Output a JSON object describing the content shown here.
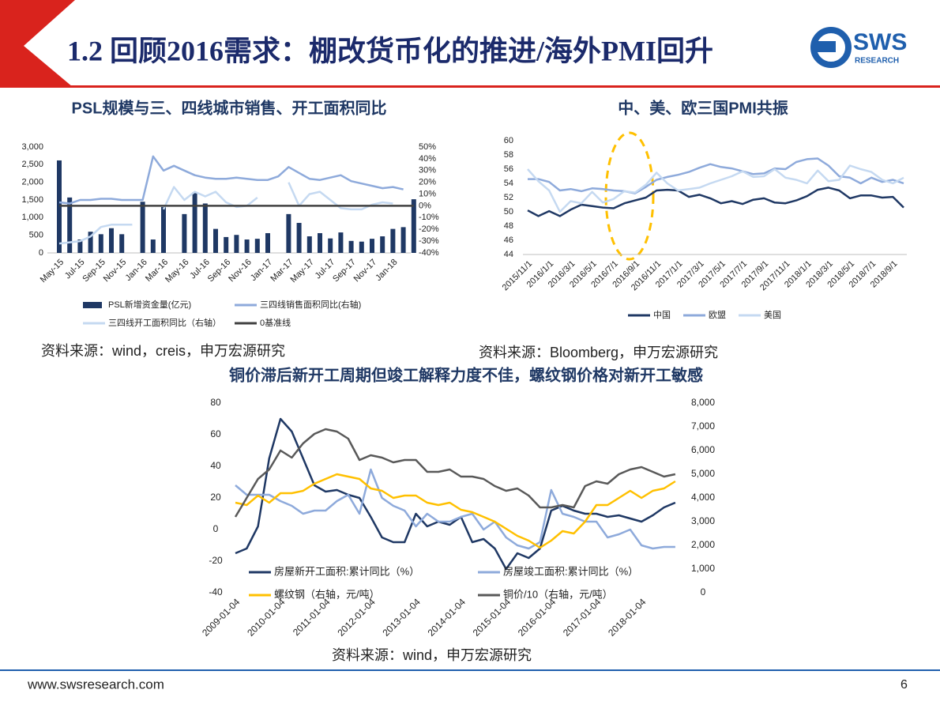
{
  "header": {
    "title": "1.2 回顾2016需求：棚改货币化的推进/海外PMI回升",
    "logo_main": "SWS",
    "logo_sub": "RESEARCH"
  },
  "footer": {
    "url": "www.swsresearch.com",
    "page": 6
  },
  "chart_data": [
    {
      "type": "bar",
      "title": "PSL规模与三、四线城市销售、开工面积同比",
      "source": "资料来源：wind，creis，申万宏源研究",
      "categories": [
        "May-15",
        null,
        "Jul-15",
        null,
        "Sep-15",
        null,
        "Nov-15",
        null,
        "Jan-16",
        null,
        "Mar-16",
        null,
        "May-16",
        null,
        "Jul-16",
        null,
        "Sep-16",
        null,
        "Nov-16",
        null,
        "Jan-17",
        null,
        "Mar-17",
        null,
        "May-17",
        null,
        "Jul-17",
        null,
        "Sep-17",
        null,
        "Nov-17",
        null,
        "Jan-18",
        null,
        null
      ],
      "ylim": [
        0,
        3000
      ],
      "yticks": [
        0,
        {
          "value": 500,
          "label": "500"
        },
        {
          "value": 1000,
          "label": "1,000"
        },
        {
          "value": 1500,
          "label": "1,500"
        },
        {
          "value": 2000,
          "label": "2,000"
        },
        {
          "value": 2500,
          "label": "2,500"
        },
        {
          "value": 3000,
          "label": "3,000"
        }
      ],
      "y2lim": [
        -40,
        50
      ],
      "y2ticks": [
        {
          "value": -40,
          "label": "-40%"
        },
        {
          "value": -30,
          "label": "-30%"
        },
        {
          "value": -20,
          "label": "-20%"
        },
        {
          "value": -10,
          "label": "-10%"
        },
        {
          "value": 0,
          "label": "0%"
        },
        {
          "value": 10,
          "label": "10%"
        },
        {
          "value": 20,
          "label": "20%"
        },
        {
          "value": 30,
          "label": "30%"
        },
        {
          "value": 40,
          "label": "40%"
        },
        {
          "value": 50,
          "label": "50%"
        }
      ],
      "series": [
        {
          "name": "PSL新增资金量(亿元)",
          "type": "bar",
          "color": "#1f3864",
          "values": [
            2620,
            1570,
            380,
            600,
            530,
            700,
            530,
            0,
            1450,
            380,
            1300,
            0,
            1100,
            1720,
            1400,
            680,
            450,
            510,
            380,
            400,
            560,
            0,
            1100,
            850,
            470,
            560,
            410,
            580,
            340,
            320,
            400,
            470,
            680,
            730,
            1520
          ]
        },
        {
          "name": "三四线销售面积同比(右轴)",
          "type": "line",
          "axis": "y2",
          "color": "#8eaadb",
          "values": [
            3,
            2,
            5,
            5,
            6,
            6,
            5,
            5,
            5,
            42,
            30,
            34,
            30,
            26,
            24,
            23,
            23,
            24,
            23,
            22,
            22,
            25,
            33,
            28,
            23,
            22,
            24,
            26,
            21,
            19,
            17,
            15,
            16,
            14,
            null
          ]
        },
        {
          "name": "三四线开工面积同比（右轴）",
          "type": "line",
          "axis": "y2",
          "color": "#c5d9f1",
          "values": [
            -32,
            -31,
            -30,
            -26,
            -18,
            -16,
            -16,
            -16,
            null,
            null,
            -3,
            16,
            5,
            12,
            8,
            12,
            3,
            -1,
            0,
            7,
            null,
            null,
            20,
            0,
            10,
            12,
            5,
            -2,
            -3,
            -3,
            1,
            3,
            2,
            null,
            null
          ]
        },
        {
          "name": "0基准线",
          "type": "line",
          "axis": "y2",
          "color": "#404040",
          "values": [
            0,
            0,
            0,
            0,
            0,
            0,
            0,
            0,
            0,
            0,
            0,
            0,
            0,
            0,
            0,
            0,
            0,
            0,
            0,
            0,
            0,
            0,
            0,
            0,
            0,
            0,
            0,
            0,
            0,
            0,
            0,
            0,
            0,
            0,
            0
          ]
        }
      ]
    },
    {
      "type": "line",
      "title": "中、美、欧三国PMI共振",
      "source": "资料来源：Bloomberg，申万宏源研究",
      "categories": [
        "2015/11/1",
        null,
        "2016/1/1",
        null,
        "2016/3/1",
        null,
        "2016/5/1",
        null,
        "2016/7/1",
        null,
        "2016/9/1",
        null,
        "2016/11/1",
        null,
        "2017/1/1",
        null,
        "2017/3/1",
        null,
        "2017/5/1",
        null,
        "2017/7/1",
        null,
        "2017/9/1",
        null,
        "2017/11/1",
        null,
        "2018/1/1",
        null,
        "2018/3/1",
        null,
        "2018/5/1",
        null,
        "2018/7/1",
        null,
        "2018/9/1",
        null
      ],
      "ylim": [
        44,
        60
      ],
      "yticks": [
        44,
        46,
        48,
        50,
        52,
        54,
        56,
        58,
        60
      ],
      "series": [
        {
          "name": "中国",
          "type": "line",
          "color": "#1f3864",
          "values": [
            50.2,
            49.4,
            50.1,
            49.4,
            50.3,
            51.0,
            50.8,
            50.6,
            50.5,
            51.2,
            51.6,
            52.0,
            53.0,
            53.1,
            53.0,
            52.1,
            52.4,
            51.9,
            51.2,
            51.5,
            51.1,
            51.7,
            51.9,
            51.3,
            51.2,
            51.6,
            52.2,
            53.1,
            53.4,
            53.0,
            51.9,
            52.3,
            52.3,
            52.0,
            52.1,
            50.6
          ]
        },
        {
          "name": "欧盟",
          "type": "line",
          "color": "#8eaadb",
          "values": [
            54.6,
            54.6,
            54.2,
            53.0,
            53.2,
            52.9,
            53.3,
            53.2,
            53.0,
            52.9,
            52.6,
            53.5,
            54.5,
            54.9,
            55.2,
            55.6,
            56.2,
            56.7,
            56.3,
            56.1,
            55.7,
            55.3,
            55.4,
            56.1,
            56.0,
            57.0,
            57.4,
            57.5,
            56.5,
            55.0,
            54.8,
            54.0,
            54.8,
            54.2,
            54.5,
            54.0
          ]
        },
        {
          "name": "美国",
          "type": "line",
          "color": "#c5d9f1",
          "values": [
            56.0,
            54.3,
            53.0,
            50.0,
            51.5,
            51.2,
            52.8,
            51.3,
            51.8,
            52.9,
            52.7,
            53.8,
            55.5,
            54.0,
            53.0,
            53.2,
            53.4,
            54.0,
            54.5,
            55.0,
            55.7,
            54.9,
            55.0,
            56.0,
            54.8,
            54.5,
            54.0,
            55.8,
            54.3,
            54.5,
            56.5,
            56.0,
            55.6,
            54.5,
            54.0,
            54.8
          ]
        }
      ]
    },
    {
      "type": "line",
      "title": "铜价滞后新开工周期但竣工解释力度不佳，螺纹钢价格对新开工敏感",
      "source": "资料来源：wind，申万宏源研究",
      "categories": [
        "2009-01-04",
        null,
        null,
        null,
        "2010-01-04",
        null,
        null,
        null,
        "2011-01-04",
        null,
        null,
        null,
        "2012-01-04",
        null,
        null,
        null,
        "2013-01-04",
        null,
        null,
        null,
        "2014-01-04",
        null,
        null,
        null,
        "2015-01-04",
        null,
        null,
        null,
        "2016-01-04",
        null,
        null,
        null,
        "2017-01-04",
        null,
        null,
        null,
        "2018-01-04",
        null,
        null,
        null
      ],
      "ylim": [
        -40,
        80
      ],
      "yticks": [
        -40,
        -20,
        0,
        20,
        40,
        60,
        80
      ],
      "y2lim": [
        0,
        8000
      ],
      "y2ticks": [
        0,
        {
          "value": 1000,
          "label": "1,000"
        },
        {
          "value": 2000,
          "label": "2,000"
        },
        {
          "value": 3000,
          "label": "3,000"
        },
        {
          "value": 4000,
          "label": "4,000"
        },
        {
          "value": 5000,
          "label": "5,000"
        },
        {
          "value": 6000,
          "label": "6,000"
        },
        {
          "value": 7000,
          "label": "7,000"
        },
        {
          "value": 8000,
          "label": "8,000"
        }
      ],
      "series": [
        {
          "name": "房屋新开工面积:累计同比（%）",
          "type": "line",
          "color": "#1f3864",
          "values": [
            -15,
            -12,
            2,
            45,
            70,
            62,
            45,
            28,
            24,
            25,
            22,
            20,
            8,
            -5,
            -8,
            -8,
            10,
            2,
            5,
            3,
            8,
            -8,
            -6,
            -12,
            -25,
            -15,
            -18,
            -12,
            12,
            15,
            12,
            10,
            10,
            8,
            9,
            7,
            5,
            9,
            14,
            17
          ]
        },
        {
          "name": "房屋竣工面积:累计同比（%）",
          "type": "line",
          "color": "#8eaadb",
          "values": [
            28,
            22,
            22,
            22,
            18,
            15,
            10,
            12,
            12,
            18,
            22,
            10,
            38,
            20,
            15,
            12,
            2,
            10,
            5,
            5,
            8,
            10,
            0,
            5,
            -5,
            -10,
            -12,
            -8,
            25,
            10,
            8,
            5,
            5,
            -5,
            -3,
            0,
            -10,
            -12,
            -11,
            -11
          ]
        },
        {
          "name": "螺纹钢（右轴，元/吨）",
          "type": "line",
          "axis": "y2",
          "color": "#ffc000",
          "values": [
            3800,
            3700,
            4100,
            3800,
            4200,
            4200,
            4300,
            4600,
            4800,
            5000,
            4900,
            4800,
            4400,
            4300,
            4000,
            4100,
            4100,
            3800,
            3700,
            3800,
            3500,
            3400,
            3200,
            3000,
            2700,
            2400,
            2200,
            1900,
            2200,
            2600,
            2500,
            3000,
            3700,
            3700,
            4000,
            4300,
            4000,
            4300,
            4400,
            4700
          ]
        },
        {
          "name": "铜价/10（右轴，元/吨）",
          "type": "line",
          "axis": "y2",
          "color": "#595959",
          "values": [
            3200,
            4000,
            4800,
            5200,
            6000,
            5700,
            6300,
            6700,
            6900,
            6800,
            6500,
            5600,
            5800,
            5700,
            5500,
            5600,
            5600,
            5100,
            5100,
            5200,
            4900,
            4900,
            4800,
            4500,
            4300,
            4400,
            4100,
            3600,
            3600,
            3700,
            3600,
            4500,
            4700,
            4600,
            5000,
            5200,
            5300,
            5100,
            4900,
            5000
          ]
        }
      ]
    }
  ]
}
